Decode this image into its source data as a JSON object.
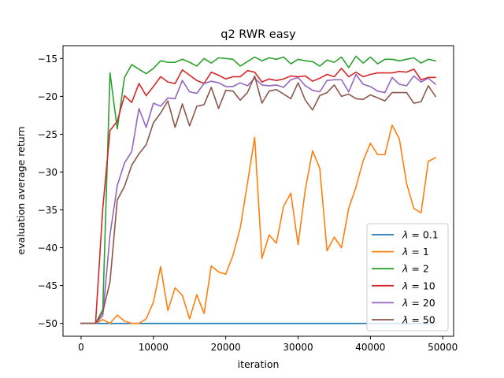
{
  "chart_data": {
    "type": "line",
    "title": "q2 RWR easy",
    "xlabel": "iteration",
    "ylabel": "evaluation average return",
    "xlim": [
      -2500,
      51500
    ],
    "ylim": [
      -51.7,
      -13.3
    ],
    "xticks": [
      0,
      10000,
      20000,
      30000,
      40000,
      50000
    ],
    "xtick_labels": [
      "0",
      "10000",
      "20000",
      "30000",
      "40000",
      "50000"
    ],
    "yticks": [
      -50,
      -45,
      -40,
      -35,
      -30,
      -25,
      -20,
      -15
    ],
    "ytick_labels": [
      "−50",
      "−45",
      "−40",
      "−35",
      "−30",
      "−25",
      "−20",
      "−15"
    ],
    "grid": false,
    "legend_position": "lower right",
    "x": [
      0,
      1000,
      2000,
      3000,
      4000,
      5000,
      6000,
      7000,
      8000,
      9000,
      10000,
      11000,
      12000,
      13000,
      14000,
      15000,
      16000,
      17000,
      18000,
      19000,
      20000,
      21000,
      22000,
      23000,
      24000,
      25000,
      26000,
      27000,
      28000,
      29000,
      30000,
      31000,
      32000,
      33000,
      34000,
      35000,
      36000,
      37000,
      38000,
      39000,
      40000,
      41000,
      42000,
      43000,
      44000,
      45000,
      46000,
      47000,
      48000,
      49000
    ],
    "series": [
      {
        "name": "λ = 0.1",
        "legend_prefix": "λ",
        "legend_suffix": " = 0.1",
        "color": "#1f77b4",
        "values": [
          -50,
          -50,
          -50,
          -50,
          -50,
          -50,
          -50,
          -50,
          -50,
          -50,
          -50,
          -50,
          -50,
          -50,
          -50,
          -50,
          -50,
          -50,
          -50,
          -50,
          -50,
          -50,
          -50,
          -50,
          -50,
          -50,
          -50,
          -50,
          -50,
          -50,
          -50,
          -50,
          -50,
          -50,
          -50,
          -50,
          -50,
          -50,
          -50,
          -50,
          -50,
          -50,
          -50,
          -50,
          -50,
          -50,
          -50,
          -50,
          -50,
          -50
        ]
      },
      {
        "name": "λ = 1",
        "legend_prefix": "λ",
        "legend_suffix": " = 1",
        "color": "#ff7f0e",
        "values": [
          -50,
          -50,
          -50,
          -49.5,
          -50,
          -48.9,
          -49.7,
          -50,
          -50,
          -49.4,
          -47.2,
          -42.5,
          -48.3,
          -45.3,
          -46.3,
          -49.4,
          -46.2,
          -48.7,
          -42.4,
          -43.2,
          -43.5,
          -41,
          -37.4,
          -31.5,
          -25.4,
          -41.4,
          -38.3,
          -39.4,
          -34.5,
          -32.8,
          -39.6,
          -32.3,
          -27.2,
          -29.5,
          -40.4,
          -38.6,
          -40,
          -34.8,
          -32,
          -28.5,
          -26.2,
          -27.7,
          -27.7,
          -23.8,
          -25.6,
          -31.5,
          -34.8,
          -35.4,
          -28.6,
          -28.1
        ]
      },
      {
        "name": "λ = 2",
        "legend_prefix": "λ",
        "legend_suffix": " = 2",
        "color": "#2ca02c",
        "values": [
          -50,
          -50,
          -50,
          -48.2,
          -16.9,
          -24.3,
          -17.5,
          -15.8,
          -16.4,
          -17,
          -16.3,
          -15.3,
          -15.5,
          -15.5,
          -15.1,
          -15.5,
          -16,
          -15,
          -15.6,
          -14.9,
          -15,
          -15.1,
          -16,
          -15.4,
          -14.8,
          -15.3,
          -14.9,
          -15.1,
          -14.8,
          -15.7,
          -15.1,
          -15.3,
          -15.4,
          -16,
          -15.2,
          -15.5,
          -14.8,
          -16.2,
          -14.7,
          -15.6,
          -14.8,
          -15.7,
          -15.1,
          -15.1,
          -15.3,
          -15.1,
          -14.9,
          -15.6,
          -15.1,
          -15.3
        ]
      },
      {
        "name": "λ = 10",
        "legend_prefix": "λ",
        "legend_suffix": " = 10",
        "color": "#d62728",
        "values": [
          -50,
          -50,
          -50,
          -34.8,
          -24.5,
          -23.3,
          -19.9,
          -20.8,
          -18.3,
          -19.9,
          -18.7,
          -17.4,
          -18.1,
          -18.3,
          -16.5,
          -17.2,
          -17.9,
          -18.3,
          -16.8,
          -17.2,
          -17.7,
          -17.4,
          -17.4,
          -16.6,
          -16.8,
          -18.1,
          -17.7,
          -17.9,
          -17.7,
          -17.3,
          -17.4,
          -17.3,
          -18,
          -17.6,
          -17.1,
          -17.4,
          -16.3,
          -17.4,
          -16.8,
          -17.4,
          -17.1,
          -16.9,
          -16.9,
          -16.9,
          -16.7,
          -16.8,
          -16.4,
          -17.8,
          -17.5,
          -17.5
        ]
      },
      {
        "name": "λ = 20",
        "legend_prefix": "λ",
        "legend_suffix": " = 20",
        "color": "#9467bd",
        "values": [
          -50,
          -50,
          -50,
          -49,
          -38.3,
          -31.8,
          -28.8,
          -27.3,
          -21.6,
          -24.1,
          -20.9,
          -21.3,
          -20.2,
          -20.3,
          -17.9,
          -19.4,
          -19.6,
          -18.3,
          -18,
          -18.2,
          -18.7,
          -18.7,
          -18.2,
          -18.6,
          -17.6,
          -18.5,
          -18.6,
          -18.5,
          -18.8,
          -17.8,
          -17.5,
          -18.6,
          -19.2,
          -19.4,
          -17.9,
          -17.8,
          -17.8,
          -19.4,
          -17.1,
          -18.4,
          -18.7,
          -19.3,
          -19.5,
          -17.5,
          -18.4,
          -18.6,
          -17.3,
          -18.1,
          -17.6,
          -18.4
        ]
      },
      {
        "name": "λ = 50",
        "legend_prefix": "λ",
        "legend_suffix": " = 50",
        "color": "#8c564b",
        "values": [
          -50,
          -50,
          -50,
          -48.5,
          -44.5,
          -33.7,
          -31.9,
          -29.1,
          -27.6,
          -26.4,
          -23.5,
          -22.2,
          -20.6,
          -24.1,
          -21,
          -23.9,
          -21.3,
          -21.1,
          -18.8,
          -21.6,
          -19.2,
          -19.3,
          -20.5,
          -19.5,
          -17.3,
          -20.9,
          -19.3,
          -19.1,
          -19.7,
          -20.3,
          -18.2,
          -20.5,
          -21.8,
          -19.9,
          -19.5,
          -18.5,
          -20,
          -19.7,
          -20.3,
          -20.4,
          -19.8,
          -20.2,
          -20.6,
          -19.5,
          -19.5,
          -19.5,
          -20.9,
          -20.7,
          -18.6,
          -20
        ]
      }
    ]
  }
}
